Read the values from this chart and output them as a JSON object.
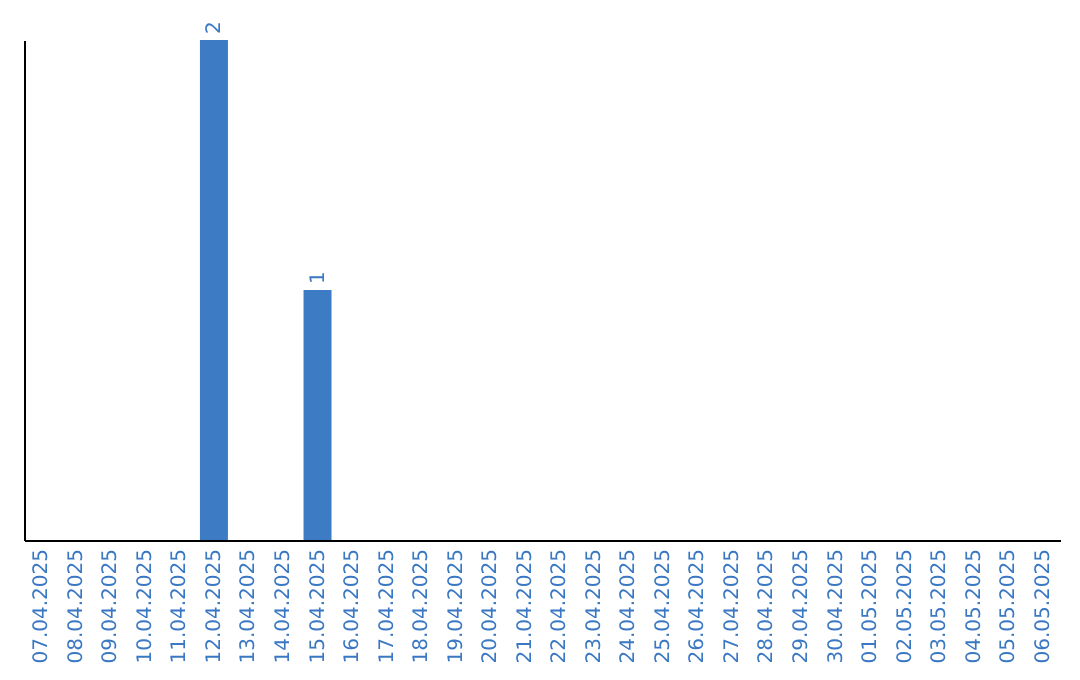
{
  "chart_data": {
    "type": "bar",
    "categories": [
      "07.04.2025",
      "08.04.2025",
      "09.04.2025",
      "10.04.2025",
      "11.04.2025",
      "12.04.2025",
      "13.04.2025",
      "14.04.2025",
      "15.04.2025",
      "16.04.2025",
      "17.04.2025",
      "18.04.2025",
      "19.04.2025",
      "20.04.2025",
      "21.04.2025",
      "22.04.2025",
      "23.04.2025",
      "24.04.2025",
      "25.04.2025",
      "26.04.2025",
      "27.04.2025",
      "28.04.2025",
      "29.04.2025",
      "30.04.2025",
      "01.05.2025",
      "02.05.2025",
      "03.05.2025",
      "04.05.2025",
      "05.05.2025",
      "06.05.2025"
    ],
    "values": [
      0,
      0,
      0,
      0,
      0,
      2,
      0,
      0,
      1,
      0,
      0,
      0,
      0,
      0,
      0,
      0,
      0,
      0,
      0,
      0,
      0,
      0,
      0,
      0,
      0,
      0,
      0,
      0,
      0,
      0
    ],
    "value_labels": [
      null,
      null,
      null,
      null,
      null,
      "2",
      null,
      null,
      "1",
      null,
      null,
      null,
      null,
      null,
      null,
      null,
      null,
      null,
      null,
      null,
      null,
      null,
      null,
      null,
      null,
      null,
      null,
      null,
      null,
      null
    ],
    "color": "#3d7cc4",
    "tick_labels": "x"
  }
}
